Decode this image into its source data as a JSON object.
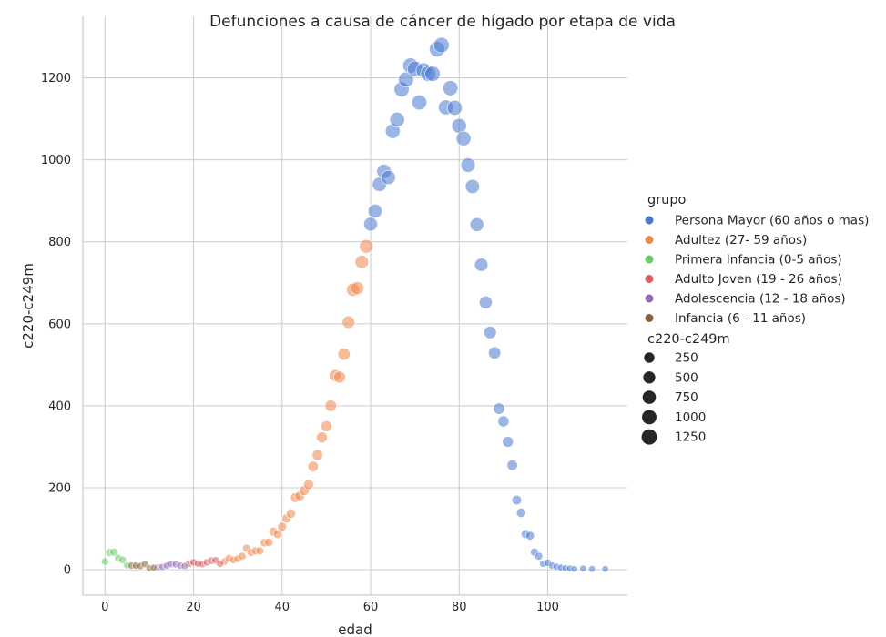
{
  "chart_data": {
    "type": "scatter",
    "title": "Defunciones a causa de cáncer de hígado por etapa de vida",
    "xlabel": "edad",
    "ylabel": "c220-c249m",
    "xlim": [
      -5,
      118
    ],
    "ylim": [
      -62,
      1350
    ],
    "xticks": [
      0,
      20,
      40,
      60,
      80,
      100
    ],
    "yticks": [
      0,
      200,
      400,
      600,
      800,
      1000,
      1200
    ],
    "grid": true,
    "legend_placement": "right",
    "hue_title": "grupo",
    "size_title": "c220-c249m",
    "size_legend": [
      250,
      500,
      750,
      1000,
      1250
    ],
    "groups": [
      {
        "name": "Persona Mayor (60 años o mas)",
        "color": "#4878d0"
      },
      {
        "name": "Adultez (27- 59 años)",
        "color": "#ee854a"
      },
      {
        "name": "Primera Infancia (0-5 años)",
        "color": "#6acc64"
      },
      {
        "name": "Adulto Joven (19 - 26 años)",
        "color": "#d65f5f"
      },
      {
        "name": "Adolescencia (12 - 18 años)",
        "color": "#956cb4"
      },
      {
        "name": "Infancia (6 - 11 años)",
        "color": "#8c613c"
      }
    ],
    "series": [
      {
        "name": "Persona Mayor (60 años o mas)",
        "x": [
          60,
          61,
          62,
          63,
          64,
          65,
          66,
          67,
          68,
          69,
          70,
          71,
          72,
          73,
          74,
          75,
          76,
          77,
          78,
          79,
          80,
          81,
          82,
          83,
          84,
          85,
          86,
          87,
          88,
          89,
          90,
          91,
          92,
          93,
          94,
          95,
          96,
          97,
          98,
          99,
          100,
          101,
          102,
          103,
          104,
          105,
          106,
          108,
          110,
          113
        ],
        "y": [
          843,
          875,
          940,
          972,
          957,
          1070,
          1098,
          1172,
          1196,
          1230,
          1222,
          1140,
          1218,
          1210,
          1210,
          1270,
          1280,
          1128,
          1175,
          1127,
          1083,
          1052,
          987,
          935,
          842,
          744,
          652,
          579,
          529,
          393,
          362,
          312,
          255,
          170,
          139,
          87,
          83,
          43,
          33,
          15,
          17,
          10,
          7,
          5,
          4,
          3,
          2,
          3,
          2,
          2
        ]
      },
      {
        "name": "Adultez (27- 59 años)",
        "x": [
          27,
          28,
          29,
          30,
          31,
          32,
          33,
          34,
          35,
          36,
          37,
          38,
          39,
          40,
          41,
          42,
          43,
          44,
          45,
          46,
          47,
          48,
          49,
          50,
          51,
          52,
          53,
          54,
          55,
          56,
          57,
          58,
          59
        ],
        "y": [
          20,
          28,
          24,
          27,
          33,
          52,
          42,
          46,
          46,
          66,
          67,
          93,
          87,
          105,
          125,
          137,
          176,
          180,
          193,
          208,
          252,
          280,
          323,
          350,
          400,
          474,
          470,
          526,
          604,
          683,
          687,
          751,
          789
        ]
      },
      {
        "name": "Primera Infancia (0-5 años)",
        "x": [
          0,
          1,
          2,
          3,
          4,
          5
        ],
        "y": [
          20,
          42,
          43,
          28,
          24,
          11
        ]
      },
      {
        "name": "Adulto Joven (19 - 26 años)",
        "x": [
          19,
          20,
          21,
          22,
          23,
          24,
          25,
          26
        ],
        "y": [
          15,
          18,
          15,
          14,
          18,
          22,
          23,
          15
        ]
      },
      {
        "name": "Adolescencia (12 - 18 años)",
        "x": [
          12,
          13,
          14,
          15,
          16,
          17,
          18
        ],
        "y": [
          6,
          7,
          10,
          14,
          13,
          10,
          9
        ]
      },
      {
        "name": "Infancia (6 - 11 años)",
        "x": [
          6,
          7,
          8,
          9,
          10,
          11
        ],
        "y": [
          10,
          10,
          9,
          14,
          4,
          5
        ]
      }
    ]
  }
}
